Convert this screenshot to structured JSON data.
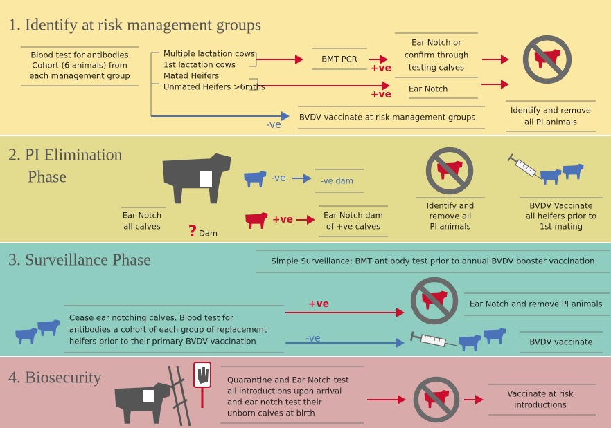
{
  "section_1": {
    "title": "1. Identify at risk management groups",
    "blood_test": [
      "Blood test for antibodies",
      "Cohort (6 animals) from",
      "each management group"
    ],
    "groups": [
      "Multiple lactation cows",
      "1st lactation cows",
      "Mated Heifers",
      "Unmated Heifers >6mths"
    ],
    "bmt_pcr": "BMT PCR",
    "positive_1": "+ve",
    "ear_notch_confirm": [
      "Ear Notch or",
      "confirm through",
      "testing calves"
    ],
    "positive_2": "+ve",
    "ear_notch": "Ear Notch",
    "negative": "-ve",
    "vaccinate": "BVDV vaccinate at risk management groups",
    "identify": [
      "Identify and remove",
      "all PI animals"
    ]
  },
  "section_2": {
    "title": [
      "2. PI Elimination",
      "Phase"
    ],
    "ear_notch_all": [
      "Ear Notch",
      "all calves"
    ],
    "question": "?",
    "dam": "Dam",
    "negative": "-ve",
    "negative_dam": "-ve dam",
    "positive": "+ve",
    "ear_notch_dam": [
      "Ear Notch dam",
      "of +ve calves"
    ],
    "identify": [
      "Identify and",
      "remove all",
      "PI animals"
    ],
    "vaccinate": [
      "BVDV Vaccinate",
      "all heifers prior to",
      "1st mating"
    ]
  },
  "section_3": {
    "title": "3. Surveillance Phase",
    "simple": "Simple Surveillance: BMT antibody test prior to annual BVDV booster vaccination",
    "cease": [
      "Cease ear notching calves. Blood test for",
      "antibodies a cohort of each group of replacement",
      "heifers prior to their primary BVDV vaccination"
    ],
    "positive": "+ve",
    "negative": "-ve",
    "ear_notch_remove": "Ear Notch and remove PI animals",
    "vaccinate": "BVDV vaccinate"
  },
  "section_4": {
    "title": "4. Biosecurity",
    "quarantine": [
      "Quarantine and Ear Notch test",
      "all introductions upon arrival",
      "and ear notch test their",
      "unborn calves at birth"
    ],
    "vaccinate": [
      "Vaccinate at risk",
      "introductions"
    ]
  }
}
